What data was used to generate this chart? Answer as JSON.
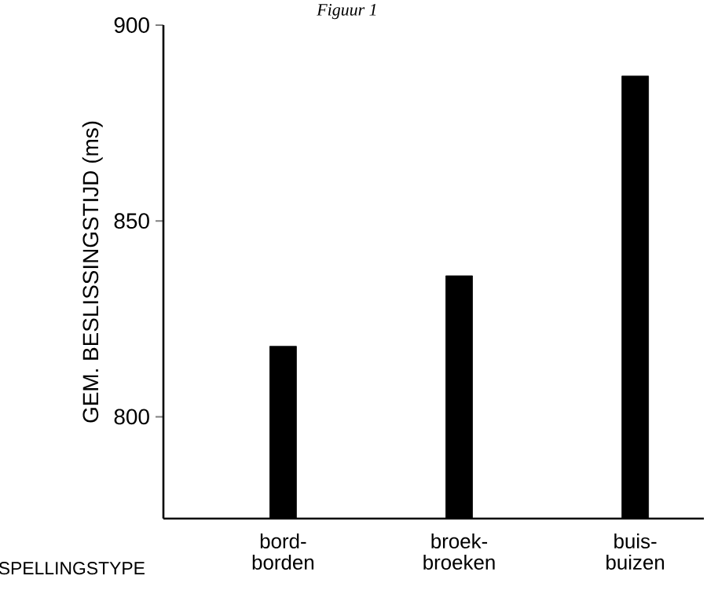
{
  "chart_data": {
    "type": "bar",
    "title": "Figuur 1",
    "xlabel": "SPELLINGSTYPE",
    "ylabel": "GEM. BESLISSINGSTIJD (ms)",
    "categories": [
      "bord-borden",
      "broek-broeken",
      "buis-buizen"
    ],
    "values": [
      818,
      836,
      887
    ],
    "color": "#000000",
    "ylim": [
      774,
      900
    ],
    "yticks": [
      800,
      850,
      900
    ],
    "grid": false
  }
}
